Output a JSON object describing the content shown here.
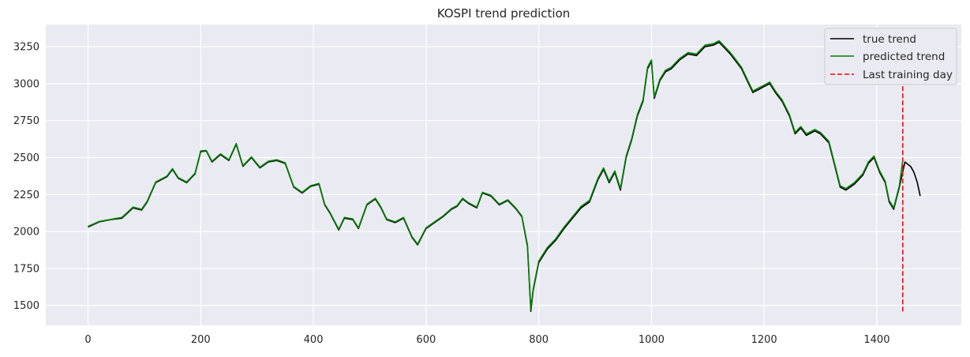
{
  "chart_data": {
    "type": "line",
    "title": "KOSPI trend prediction",
    "xlabel": "",
    "ylabel": "",
    "xlim": [
      -75,
      1550
    ],
    "ylim": [
      1365,
      3400
    ],
    "grid": true,
    "legend_position": "top-right",
    "xticks": [
      0,
      200,
      400,
      600,
      800,
      1000,
      1200,
      1400
    ],
    "yticks": [
      1500,
      1750,
      2000,
      2250,
      2500,
      2750,
      3000,
      3250
    ],
    "series": [
      {
        "name": "true trend",
        "color": "#000000",
        "style": "solid",
        "points": [
          [
            0,
            2030
          ],
          [
            20,
            2065
          ],
          [
            40,
            2080
          ],
          [
            60,
            2090
          ],
          [
            80,
            2160
          ],
          [
            95,
            2145
          ],
          [
            105,
            2200
          ],
          [
            120,
            2330
          ],
          [
            140,
            2370
          ],
          [
            150,
            2420
          ],
          [
            160,
            2360
          ],
          [
            175,
            2330
          ],
          [
            190,
            2390
          ],
          [
            200,
            2540
          ],
          [
            210,
            2545
          ],
          [
            220,
            2470
          ],
          [
            235,
            2520
          ],
          [
            250,
            2480
          ],
          [
            263,
            2590
          ],
          [
            275,
            2440
          ],
          [
            290,
            2500
          ],
          [
            305,
            2430
          ],
          [
            320,
            2470
          ],
          [
            335,
            2480
          ],
          [
            350,
            2460
          ],
          [
            365,
            2300
          ],
          [
            380,
            2260
          ],
          [
            395,
            2305
          ],
          [
            410,
            2320
          ],
          [
            420,
            2180
          ],
          [
            430,
            2120
          ],
          [
            445,
            2010
          ],
          [
            455,
            2090
          ],
          [
            470,
            2080
          ],
          [
            480,
            2020
          ],
          [
            495,
            2180
          ],
          [
            510,
            2220
          ],
          [
            520,
            2160
          ],
          [
            530,
            2080
          ],
          [
            545,
            2060
          ],
          [
            560,
            2090
          ],
          [
            575,
            1960
          ],
          [
            585,
            1910
          ],
          [
            600,
            2020
          ],
          [
            615,
            2060
          ],
          [
            630,
            2100
          ],
          [
            645,
            2150
          ],
          [
            655,
            2170
          ],
          [
            665,
            2220
          ],
          [
            675,
            2190
          ],
          [
            690,
            2160
          ],
          [
            700,
            2260
          ],
          [
            715,
            2240
          ],
          [
            730,
            2180
          ],
          [
            745,
            2210
          ],
          [
            760,
            2150
          ],
          [
            770,
            2100
          ],
          [
            780,
            1900
          ],
          [
            786,
            1460
          ],
          [
            790,
            1600
          ],
          [
            800,
            1790
          ],
          [
            815,
            1880
          ],
          [
            830,
            1940
          ],
          [
            845,
            2020
          ],
          [
            860,
            2090
          ],
          [
            875,
            2160
          ],
          [
            890,
            2200
          ],
          [
            905,
            2350
          ],
          [
            915,
            2420
          ],
          [
            925,
            2330
          ],
          [
            935,
            2400
          ],
          [
            945,
            2280
          ],
          [
            955,
            2500
          ],
          [
            965,
            2620
          ],
          [
            975,
            2780
          ],
          [
            985,
            2880
          ],
          [
            993,
            3100
          ],
          [
            1000,
            3150
          ],
          [
            1005,
            2900
          ],
          [
            1015,
            3020
          ],
          [
            1025,
            3080
          ],
          [
            1035,
            3100
          ],
          [
            1050,
            3160
          ],
          [
            1065,
            3200
          ],
          [
            1080,
            3190
          ],
          [
            1095,
            3250
          ],
          [
            1110,
            3260
          ],
          [
            1120,
            3280
          ],
          [
            1130,
            3240
          ],
          [
            1140,
            3200
          ],
          [
            1150,
            3150
          ],
          [
            1160,
            3100
          ],
          [
            1170,
            3020
          ],
          [
            1180,
            2940
          ],
          [
            1190,
            2960
          ],
          [
            1200,
            2980
          ],
          [
            1210,
            3000
          ],
          [
            1220,
            2940
          ],
          [
            1232,
            2880
          ],
          [
            1245,
            2780
          ],
          [
            1255,
            2660
          ],
          [
            1265,
            2700
          ],
          [
            1275,
            2650
          ],
          [
            1290,
            2680
          ],
          [
            1300,
            2660
          ],
          [
            1315,
            2600
          ],
          [
            1325,
            2450
          ],
          [
            1335,
            2300
          ],
          [
            1345,
            2280
          ],
          [
            1360,
            2320
          ],
          [
            1375,
            2380
          ],
          [
            1385,
            2460
          ],
          [
            1395,
            2500
          ],
          [
            1405,
            2400
          ],
          [
            1415,
            2330
          ],
          [
            1422,
            2200
          ],
          [
            1430,
            2150
          ],
          [
            1440,
            2300
          ],
          [
            1450,
            2470
          ],
          [
            1460,
            2440
          ],
          [
            1466,
            2400
          ],
          [
            1472,
            2330
          ],
          [
            1477,
            2240
          ]
        ]
      },
      {
        "name": "predicted trend",
        "color": "#008000",
        "style": "solid",
        "points": [
          [
            0,
            2035
          ],
          [
            20,
            2068
          ],
          [
            40,
            2082
          ],
          [
            60,
            2095
          ],
          [
            80,
            2165
          ],
          [
            95,
            2150
          ],
          [
            105,
            2205
          ],
          [
            120,
            2335
          ],
          [
            140,
            2375
          ],
          [
            150,
            2425
          ],
          [
            160,
            2365
          ],
          [
            175,
            2335
          ],
          [
            190,
            2395
          ],
          [
            200,
            2545
          ],
          [
            210,
            2548
          ],
          [
            220,
            2475
          ],
          [
            235,
            2525
          ],
          [
            250,
            2485
          ],
          [
            263,
            2595
          ],
          [
            275,
            2445
          ],
          [
            290,
            2505
          ],
          [
            305,
            2435
          ],
          [
            320,
            2475
          ],
          [
            335,
            2485
          ],
          [
            350,
            2465
          ],
          [
            365,
            2305
          ],
          [
            380,
            2265
          ],
          [
            395,
            2310
          ],
          [
            410,
            2325
          ],
          [
            420,
            2185
          ],
          [
            430,
            2125
          ],
          [
            445,
            2015
          ],
          [
            455,
            2095
          ],
          [
            470,
            2085
          ],
          [
            480,
            2025
          ],
          [
            495,
            2185
          ],
          [
            510,
            2225
          ],
          [
            520,
            2165
          ],
          [
            530,
            2085
          ],
          [
            545,
            2065
          ],
          [
            560,
            2095
          ],
          [
            575,
            1965
          ],
          [
            585,
            1915
          ],
          [
            600,
            2025
          ],
          [
            615,
            2065
          ],
          [
            630,
            2105
          ],
          [
            645,
            2155
          ],
          [
            655,
            2175
          ],
          [
            665,
            2225
          ],
          [
            675,
            2195
          ],
          [
            690,
            2165
          ],
          [
            700,
            2265
          ],
          [
            715,
            2245
          ],
          [
            730,
            2185
          ],
          [
            745,
            2215
          ],
          [
            760,
            2155
          ],
          [
            770,
            2105
          ],
          [
            780,
            1910
          ],
          [
            786,
            1470
          ],
          [
            790,
            1610
          ],
          [
            800,
            1800
          ],
          [
            815,
            1890
          ],
          [
            830,
            1950
          ],
          [
            845,
            2030
          ],
          [
            860,
            2100
          ],
          [
            875,
            2170
          ],
          [
            890,
            2210
          ],
          [
            905,
            2360
          ],
          [
            915,
            2430
          ],
          [
            925,
            2340
          ],
          [
            935,
            2410
          ],
          [
            945,
            2290
          ],
          [
            955,
            2510
          ],
          [
            965,
            2630
          ],
          [
            975,
            2790
          ],
          [
            985,
            2890
          ],
          [
            993,
            3110
          ],
          [
            1000,
            3160
          ],
          [
            1005,
            2910
          ],
          [
            1015,
            3030
          ],
          [
            1025,
            3090
          ],
          [
            1035,
            3110
          ],
          [
            1050,
            3170
          ],
          [
            1065,
            3210
          ],
          [
            1080,
            3200
          ],
          [
            1095,
            3260
          ],
          [
            1110,
            3270
          ],
          [
            1120,
            3290
          ],
          [
            1130,
            3250
          ],
          [
            1140,
            3210
          ],
          [
            1150,
            3160
          ],
          [
            1160,
            3110
          ],
          [
            1170,
            3030
          ],
          [
            1180,
            2950
          ],
          [
            1190,
            2970
          ],
          [
            1200,
            2990
          ],
          [
            1210,
            3010
          ],
          [
            1220,
            2950
          ],
          [
            1232,
            2890
          ],
          [
            1245,
            2790
          ],
          [
            1255,
            2670
          ],
          [
            1265,
            2710
          ],
          [
            1275,
            2660
          ],
          [
            1290,
            2690
          ],
          [
            1300,
            2670
          ],
          [
            1315,
            2610
          ],
          [
            1325,
            2460
          ],
          [
            1335,
            2310
          ],
          [
            1345,
            2290
          ],
          [
            1360,
            2330
          ],
          [
            1375,
            2390
          ],
          [
            1385,
            2470
          ],
          [
            1395,
            2510
          ],
          [
            1405,
            2410
          ],
          [
            1415,
            2340
          ],
          [
            1422,
            2210
          ],
          [
            1430,
            2160
          ],
          [
            1440,
            2310
          ],
          [
            1446,
            2480
          ]
        ]
      },
      {
        "name": "Last training day",
        "color": "#ff0000",
        "style": "dashed",
        "points": [
          [
            1446,
            1460
          ],
          [
            1446,
            3260
          ]
        ]
      }
    ]
  }
}
